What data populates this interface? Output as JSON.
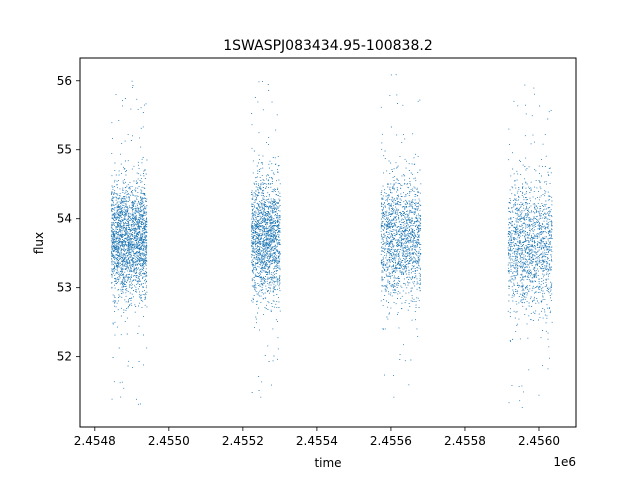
{
  "chart_data": {
    "type": "scatter",
    "title": "1SWASPJ083434.95-100838.2",
    "xlabel": "time",
    "ylabel": "flux",
    "x_offset_label": "1e6",
    "xlim": [
      2454760,
      2456100
    ],
    "ylim": [
      50.98,
      56.33
    ],
    "grid": false,
    "legend": "none",
    "point_color": "#1f77b4",
    "xticks": [
      {
        "value": 2454800,
        "label": "2.4548"
      },
      {
        "value": 2455000,
        "label": "2.4550"
      },
      {
        "value": 2455200,
        "label": "2.4552"
      },
      {
        "value": 2455400,
        "label": "2.4554"
      },
      {
        "value": 2455600,
        "label": "2.4556"
      },
      {
        "value": 2455800,
        "label": "2.4558"
      },
      {
        "value": 2456000,
        "label": "2.4560"
      }
    ],
    "yticks": [
      {
        "value": 52,
        "label": "52"
      },
      {
        "value": 53,
        "label": "53"
      },
      {
        "value": 54,
        "label": "54"
      },
      {
        "value": 55,
        "label": "55"
      },
      {
        "value": 56,
        "label": "56"
      }
    ],
    "series": [
      {
        "values_summary": "dense scatter of flux vs time in four observing seasons",
        "clusters": [
          {
            "x_range": [
              2454843,
              2454940
            ],
            "y_center": 53.7,
            "y_core": [
              52.9,
              54.5
            ],
            "y_extent": [
              51.3,
              56.05
            ],
            "density": 2200
          },
          {
            "x_range": [
              2455222,
              2455300
            ],
            "y_center": 53.7,
            "y_core": [
              52.9,
              54.6
            ],
            "y_extent": [
              51.4,
              56.0
            ],
            "density": 1600
          },
          {
            "x_range": [
              2455572,
              2455680
            ],
            "y_center": 53.7,
            "y_core": [
              52.9,
              54.6
            ],
            "y_extent": [
              51.4,
              56.1
            ],
            "density": 1500
          },
          {
            "x_range": [
              2455915,
              2456035
            ],
            "y_center": 53.6,
            "y_core": [
              52.8,
              54.6
            ],
            "y_extent": [
              51.25,
              55.95
            ],
            "density": 1500
          }
        ]
      }
    ]
  }
}
